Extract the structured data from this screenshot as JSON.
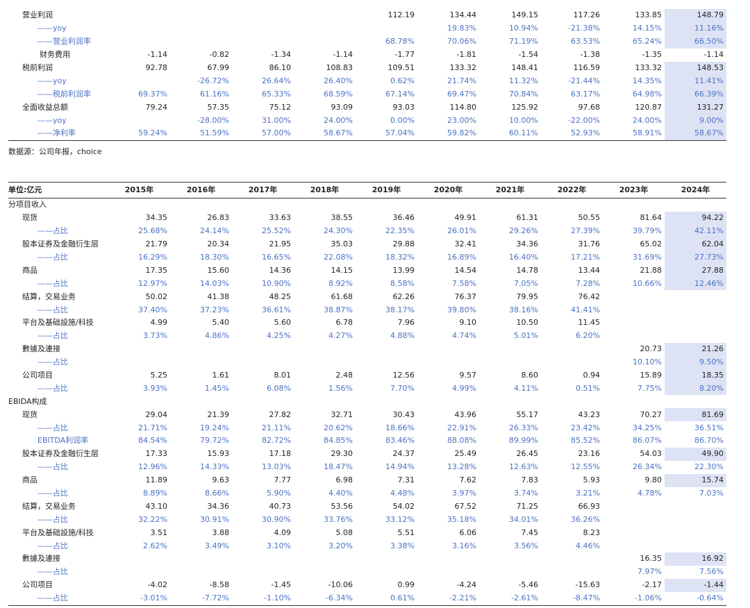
{
  "top_table": {
    "rows": [
      {
        "label": "营业利润",
        "indent": 1,
        "blue": false,
        "values": [
          "",
          "",
          "",
          "",
          "112.19",
          "134.44",
          "149.15",
          "117.26",
          "133.85",
          "148.79"
        ],
        "hl": true
      },
      {
        "label": "——yoy",
        "indent": 2,
        "blue": true,
        "values": [
          "",
          "",
          "",
          "",
          "",
          "19.83%",
          "10.94%",
          "-21.38%",
          "14.15%",
          "11.16%"
        ],
        "hl": true
      },
      {
        "label": "——营业利润率",
        "indent": 2,
        "blue": true,
        "values": [
          "",
          "",
          "",
          "",
          "68.78%",
          "70.06%",
          "71.19%",
          "63.53%",
          "65.24%",
          "66.50%"
        ],
        "hl": true
      },
      {
        "label": "财务费用",
        "indent": 3,
        "blue": false,
        "values": [
          "-1.14",
          "-0.82",
          "-1.34",
          "-1.14",
          "-1.77",
          "-1.81",
          "-1.54",
          "-1.38",
          "-1.35",
          "-1.14"
        ],
        "hl": false
      },
      {
        "label": "税前利润",
        "indent": 1,
        "blue": false,
        "values": [
          "92.78",
          "67.99",
          "86.10",
          "108.83",
          "109.51",
          "133.32",
          "148.41",
          "116.59",
          "133.32",
          "148.53"
        ],
        "hl": true
      },
      {
        "label": "——yoy",
        "indent": 2,
        "blue": true,
        "values": [
          "",
          "-26.72%",
          "26.64%",
          "26.40%",
          "0.62%",
          "21.74%",
          "11.32%",
          "-21.44%",
          "14.35%",
          "11.41%"
        ],
        "hl": true
      },
      {
        "label": "——税前利润率",
        "indent": 2,
        "blue": true,
        "values": [
          "69.37%",
          "61.16%",
          "65.33%",
          "68.59%",
          "67.14%",
          "69.47%",
          "70.84%",
          "63.17%",
          "64.98%",
          "66.39%"
        ],
        "hl": true
      },
      {
        "label": "全面收益总额",
        "indent": 1,
        "blue": false,
        "values": [
          "79.24",
          "57.35",
          "75.12",
          "93.09",
          "93.03",
          "114.80",
          "125.92",
          "97.68",
          "120.87",
          "131.27"
        ],
        "hl": true
      },
      {
        "label": "——yoy",
        "indent": 2,
        "blue": true,
        "values": [
          "",
          "-28.00%",
          "31.00%",
          "24.00%",
          "0.00%",
          "23.00%",
          "10.00%",
          "-22.00%",
          "24.00%",
          "9.00%"
        ],
        "hl": true
      },
      {
        "label": "——净利率",
        "indent": 2,
        "blue": true,
        "values": [
          "59.24%",
          "51.59%",
          "57.00%",
          "58.67%",
          "57.04%",
          "59.82%",
          "60.11%",
          "52.93%",
          "58.91%",
          "58.67%"
        ],
        "hl": true
      }
    ]
  },
  "source_note": "数据源：公司年报，choice",
  "bottom_table": {
    "unit_label": "单位:亿元",
    "years": [
      "2015年",
      "2016年",
      "2017年",
      "2018年",
      "2019年",
      "2020年",
      "2021年",
      "2022年",
      "2023年",
      "2024年"
    ],
    "rows": [
      {
        "label": "分项目收入",
        "indent": 0,
        "blue": false,
        "section": true,
        "values": [
          "",
          "",
          "",
          "",
          "",
          "",
          "",
          "",
          "",
          ""
        ],
        "hl": false
      },
      {
        "label": "现货",
        "indent": 1,
        "blue": false,
        "values": [
          "34.35",
          "26.83",
          "33.63",
          "38.55",
          "36.46",
          "49.91",
          "61.31",
          "50.55",
          "81.64",
          "94.22"
        ],
        "hl": true
      },
      {
        "label": "——占比",
        "indent": 2,
        "blue": true,
        "values": [
          "25.68%",
          "24.14%",
          "25.52%",
          "24.30%",
          "22.35%",
          "26.01%",
          "29.26%",
          "27.39%",
          "39.79%",
          "42.11%"
        ],
        "hl": true
      },
      {
        "label": "股本证券及金融衍生层",
        "indent": 1,
        "blue": false,
        "values": [
          "21.79",
          "20.34",
          "21.95",
          "35.03",
          "29.88",
          "32.41",
          "34.36",
          "31.76",
          "65.02",
          "62.04"
        ],
        "hl": true
      },
      {
        "label": "——占比",
        "indent": 2,
        "blue": true,
        "values": [
          "16.29%",
          "18.30%",
          "16.65%",
          "22.08%",
          "18.32%",
          "16.89%",
          "16.40%",
          "17.21%",
          "31.69%",
          "27.73%"
        ],
        "hl": true
      },
      {
        "label": "商品",
        "indent": 1,
        "blue": false,
        "values": [
          "17.35",
          "15.60",
          "14.36",
          "14.15",
          "13.99",
          "14.54",
          "14.78",
          "13.44",
          "21.88",
          "27.88"
        ],
        "hl": true
      },
      {
        "label": "——占比",
        "indent": 2,
        "blue": true,
        "values": [
          "12.97%",
          "14.03%",
          "10.90%",
          "8.92%",
          "8.58%",
          "7.58%",
          "7.05%",
          "7.28%",
          "10.66%",
          "12.46%"
        ],
        "hl": true
      },
      {
        "label": "结算，交易业务",
        "indent": 1,
        "blue": false,
        "values": [
          "50.02",
          "41.38",
          "48.25",
          "61.68",
          "62.26",
          "76.37",
          "79.95",
          "76.42",
          "",
          ""
        ],
        "hl": false
      },
      {
        "label": "——占比",
        "indent": 2,
        "blue": true,
        "values": [
          "37.40%",
          "37.23%",
          "36.61%",
          "38.87%",
          "38.17%",
          "39.80%",
          "38.16%",
          "41.41%",
          "",
          ""
        ],
        "hl": false
      },
      {
        "label": "平台及基础設施/科技",
        "indent": 1,
        "blue": false,
        "values": [
          "4.99",
          "5.40",
          "5.60",
          "6.78",
          "7.96",
          "9.10",
          "10.50",
          "11.45",
          "",
          ""
        ],
        "hl": false
      },
      {
        "label": "——占比",
        "indent": 2,
        "blue": true,
        "values": [
          "3.73%",
          "4.86%",
          "4.25%",
          "4.27%",
          "4.88%",
          "4.74%",
          "5.01%",
          "6.20%",
          "",
          ""
        ],
        "hl": false
      },
      {
        "label": "數據及連接",
        "indent": 1,
        "blue": false,
        "values": [
          "",
          "",
          "",
          "",
          "",
          "",
          "",
          "",
          "20.73",
          "21.26"
        ],
        "hl": true
      },
      {
        "label": "——占比",
        "indent": 2,
        "blue": true,
        "values": [
          "",
          "",
          "",
          "",
          "",
          "",
          "",
          "",
          "10.10%",
          "9.50%"
        ],
        "hl": true
      },
      {
        "label": "公司项目",
        "indent": 1,
        "blue": false,
        "values": [
          "5.25",
          "1.61",
          "8.01",
          "2.48",
          "12.56",
          "9.57",
          "8.60",
          "0.94",
          "15.89",
          "18.35"
        ],
        "hl": true
      },
      {
        "label": "——占比",
        "indent": 2,
        "blue": true,
        "values": [
          "3.93%",
          "1.45%",
          "6.08%",
          "1.56%",
          "7.70%",
          "4.99%",
          "4.11%",
          "0.51%",
          "7.75%",
          "8.20%"
        ],
        "hl": true
      },
      {
        "label": "EBIDA构成",
        "indent": 0,
        "blue": false,
        "section": true,
        "values": [
          "",
          "",
          "",
          "",
          "",
          "",
          "",
          "",
          "",
          ""
        ],
        "hl": false
      },
      {
        "label": "现货",
        "indent": 1,
        "blue": false,
        "values": [
          "29.04",
          "21.39",
          "27.82",
          "32.71",
          "30.43",
          "43.96",
          "55.17",
          "43.23",
          "70.27",
          "81.69"
        ],
        "hl": true
      },
      {
        "label": "——占比",
        "indent": 2,
        "blue": true,
        "values": [
          "21.71%",
          "19.24%",
          "21.11%",
          "20.62%",
          "18.66%",
          "22.91%",
          "26.33%",
          "23.42%",
          "34.25%",
          "36.51%"
        ],
        "hl": false
      },
      {
        "label": "EBITDA利润率",
        "indent": 2,
        "blue": true,
        "values": [
          "84.54%",
          "79.72%",
          "82.72%",
          "84.85%",
          "83.46%",
          "88.08%",
          "89.99%",
          "85.52%",
          "86.07%",
          "86.70%"
        ],
        "hl": false
      },
      {
        "label": "股本证券及金融衍生层",
        "indent": 1,
        "blue": false,
        "values": [
          "17.33",
          "15.93",
          "17.18",
          "29.30",
          "24.37",
          "25.49",
          "26.45",
          "23.16",
          "54.03",
          "49.90"
        ],
        "hl": true
      },
      {
        "label": "——占比",
        "indent": 2,
        "blue": true,
        "values": [
          "12.96%",
          "14.33%",
          "13.03%",
          "18.47%",
          "14.94%",
          "13.28%",
          "12.63%",
          "12.55%",
          "26.34%",
          "22.30%"
        ],
        "hl": false
      },
      {
        "label": "商品",
        "indent": 1,
        "blue": false,
        "values": [
          "11.89",
          "9.63",
          "7.77",
          "6.98",
          "7.31",
          "7.62",
          "7.83",
          "5.93",
          "9.80",
          "15.74"
        ],
        "hl": true
      },
      {
        "label": "——占比",
        "indent": 2,
        "blue": true,
        "values": [
          "8.89%",
          "8.66%",
          "5.90%",
          "4.40%",
          "4.48%",
          "3.97%",
          "3.74%",
          "3.21%",
          "4.78%",
          "7.03%"
        ],
        "hl": false
      },
      {
        "label": "结算，交易业务",
        "indent": 1,
        "blue": false,
        "values": [
          "43.10",
          "34.36",
          "40.73",
          "53.56",
          "54.02",
          "67.52",
          "71.25",
          "66.93",
          "",
          ""
        ],
        "hl": false
      },
      {
        "label": "——占比",
        "indent": 2,
        "blue": true,
        "values": [
          "32.22%",
          "30.91%",
          "30.90%",
          "33.76%",
          "33.12%",
          "35.18%",
          "34.01%",
          "36.26%",
          "",
          ""
        ],
        "hl": false
      },
      {
        "label": "平台及基础設施/科技",
        "indent": 1,
        "blue": false,
        "values": [
          "3.51",
          "3.88",
          "4.09",
          "5.08",
          "5.51",
          "6.06",
          "7.45",
          "8.23",
          "",
          ""
        ],
        "hl": false
      },
      {
        "label": "——占比",
        "indent": 2,
        "blue": true,
        "values": [
          "2.62%",
          "3.49%",
          "3.10%",
          "3.20%",
          "3.38%",
          "3.16%",
          "3.56%",
          "4.46%",
          "",
          ""
        ],
        "hl": false
      },
      {
        "label": "數據及連接",
        "indent": 1,
        "blue": false,
        "values": [
          "",
          "",
          "",
          "",
          "",
          "",
          "",
          "",
          "16.35",
          "16.92"
        ],
        "hl": true
      },
      {
        "label": "——占比",
        "indent": 2,
        "blue": true,
        "values": [
          "",
          "",
          "",
          "",
          "",
          "",
          "",
          "",
          "7.97%",
          "7.56%"
        ],
        "hl": false
      },
      {
        "label": "公司项目",
        "indent": 1,
        "blue": false,
        "values": [
          "-4.02",
          "-8.58",
          "-1.45",
          "-10.06",
          "0.99",
          "-4.24",
          "-5.46",
          "-15.63",
          "-2.17",
          "-1.44"
        ],
        "hl": true
      },
      {
        "label": "——占比",
        "indent": 2,
        "blue": true,
        "values": [
          "-3.01%",
          "-7.72%",
          "-1.10%",
          "-6.34%",
          "0.61%",
          "-2.21%",
          "-2.61%",
          "-8.47%",
          "-1.06%",
          "-0.64%"
        ],
        "hl": false
      }
    ]
  },
  "colors": {
    "blue_text": "#4a72c4",
    "highlight": "#dde3f5",
    "text": "#222222"
  }
}
